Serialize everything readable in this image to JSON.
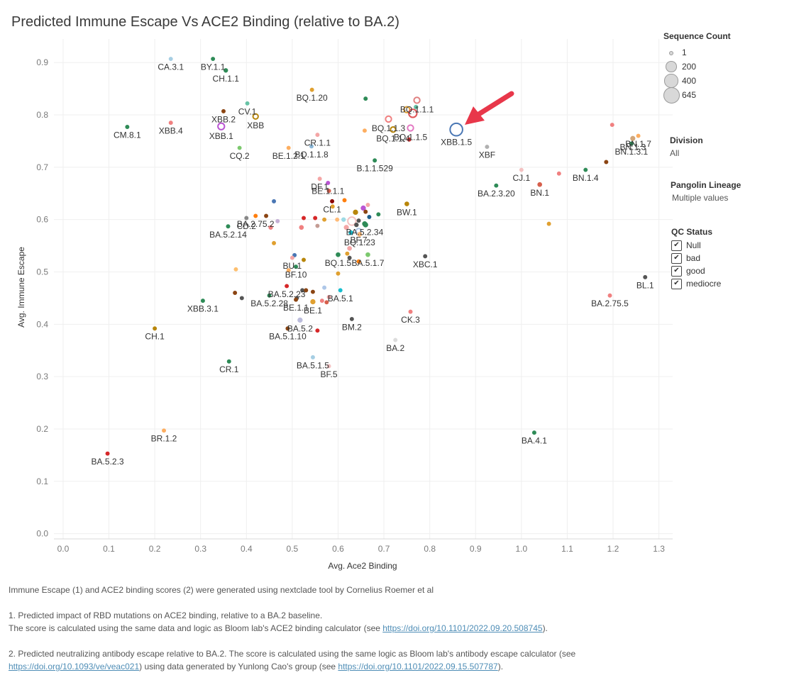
{
  "chart_data": {
    "type": "scatter",
    "title": "Predicted Immune Escape Vs ACE2 Binding (relative to BA.2)",
    "xlabel": "Avg. Ace2 Binding",
    "ylabel": "Avg. Immune Escape",
    "xlim": [
      -0.02,
      1.33
    ],
    "ylim": [
      -0.01,
      0.945
    ],
    "xticks": [
      "0.0",
      "0.1",
      "0.2",
      "0.3",
      "0.4",
      "0.5",
      "0.6",
      "0.7",
      "0.8",
      "0.9",
      "1.0",
      "1.1",
      "1.2",
      "1.3"
    ],
    "yticks": [
      "0.0",
      "0.1",
      "0.2",
      "0.3",
      "0.4",
      "0.5",
      "0.6",
      "0.7",
      "0.8",
      "0.9"
    ],
    "labeled_points": [
      {
        "label": "CA.3.1",
        "x": 0.235,
        "y": 0.907,
        "color": "#a6cee3",
        "size": 1
      },
      {
        "label": "BY.1.1",
        "x": 0.327,
        "y": 0.907,
        "color": "#2e8b57",
        "size": 1
      },
      {
        "label": "CH.1.1",
        "x": 0.355,
        "y": 0.885,
        "color": "#2e8b57",
        "size": 2
      },
      {
        "label": "BQ.1.20",
        "x": 0.543,
        "y": 0.848,
        "color": "#e0a030",
        "size": 1
      },
      {
        "label": "XBB.2",
        "x": 0.35,
        "y": 0.807,
        "color": "#8b4513",
        "size": 1
      },
      {
        "label": "CV.1",
        "x": 0.402,
        "y": 0.822,
        "color": "#66c2a5",
        "size": 1
      },
      {
        "label": "XBB",
        "x": 0.42,
        "y": 0.797,
        "color": "#b8860b",
        "size": 12
      },
      {
        "label": "XBB.4",
        "x": 0.235,
        "y": 0.785,
        "color": "#f08080",
        "size": 1
      },
      {
        "label": "XBB.1",
        "x": 0.345,
        "y": 0.778,
        "color": "#ba55d3",
        "size": 30
      },
      {
        "label": "CM.8.1",
        "x": 0.14,
        "y": 0.777,
        "color": "#2e8b57",
        "size": 1
      },
      {
        "label": "CQ.2",
        "x": 0.385,
        "y": 0.737,
        "color": "#7cc96e",
        "size": 1
      },
      {
        "label": "CR.1.1",
        "x": 0.555,
        "y": 0.762,
        "color": "#f4a6a6",
        "size": 1
      },
      {
        "label": "BE.1.2.1",
        "x": 0.492,
        "y": 0.737,
        "color": "#fdae61",
        "size": 1
      },
      {
        "label": "BQ.1.1.8",
        "x": 0.542,
        "y": 0.74,
        "color": "#8cb8d8",
        "size": 1
      },
      {
        "label": "BQ.1.1.3",
        "x": 0.71,
        "y": 0.792,
        "color": "#f08080",
        "size": 20
      },
      {
        "label": "BQ.1.1.1",
        "x": 0.772,
        "y": 0.828,
        "color": "#e08080",
        "size": 20
      },
      {
        "label": "BQ.1.1.5",
        "x": 0.758,
        "y": 0.775,
        "color": "#e377c2",
        "size": 20
      },
      {
        "label": "BQ.1.1.4",
        "x": 0.72,
        "y": 0.772,
        "color": "#b8860b",
        "size": 12
      },
      {
        "label": "B.1.1.529",
        "x": 0.68,
        "y": 0.713,
        "color": "#2e8b57",
        "size": 1
      },
      {
        "label": "XBB.1.5",
        "x": 0.858,
        "y": 0.772,
        "color": "#4a77b4",
        "size": 200
      },
      {
        "label": "XBF",
        "x": 0.925,
        "y": 0.739,
        "color": "#b0b0b0",
        "size": 1
      },
      {
        "label": "BN.1.3",
        "x": 1.243,
        "y": 0.755,
        "color": "#d2a679",
        "size": 5
      },
      {
        "label": "BN.1.7",
        "x": 1.255,
        "y": 0.76,
        "color": "#fdae61",
        "size": 1
      },
      {
        "label": "BN.1.3.1",
        "x": 1.24,
        "y": 0.745,
        "color": "#2e8b57",
        "size": 1
      },
      {
        "label": "DF.1",
        "x": 0.56,
        "y": 0.678,
        "color": "#f4a6a6",
        "size": 1
      },
      {
        "label": "BE.1.1.1",
        "x": 0.578,
        "y": 0.67,
        "color": "#ba55d3",
        "size": 1
      },
      {
        "label": "CJ.1",
        "x": 1.0,
        "y": 0.695,
        "color": "#f4c2c2",
        "size": 1
      },
      {
        "label": "BN.1.4",
        "x": 1.14,
        "y": 0.695,
        "color": "#2e8b57",
        "size": 1
      },
      {
        "label": "BA.2.3.20",
        "x": 0.945,
        "y": 0.665,
        "color": "#2e8b57",
        "size": 1
      },
      {
        "label": "BN.1",
        "x": 1.04,
        "y": 0.667,
        "color": "#d6604d",
        "size": 3
      },
      {
        "label": "CL.1",
        "x": 0.587,
        "y": 0.635,
        "color": "#8b0000",
        "size": 1
      },
      {
        "label": "BW.1",
        "x": 0.75,
        "y": 0.63,
        "color": "#b8860b",
        "size": 3
      },
      {
        "label": "CD.2",
        "x": 0.4,
        "y": 0.603,
        "color": "#888888",
        "size": 1
      },
      {
        "label": "BA.2.75.2",
        "x": 0.42,
        "y": 0.607,
        "color": "#ff7f0e",
        "size": 1
      },
      {
        "label": "BA.5.2.34",
        "x": 0.658,
        "y": 0.592,
        "color": "#2e8b57",
        "size": 5
      },
      {
        "label": "BA.5.2.14",
        "x": 0.36,
        "y": 0.587,
        "color": "#2e8b57",
        "size": 1
      },
      {
        "label": "BF.7",
        "x": 0.645,
        "y": 0.578,
        "color": "#aec7e8",
        "size": 12
      },
      {
        "label": "BQ.1.23",
        "x": 0.647,
        "y": 0.572,
        "color": "#ffbb78",
        "size": 3
      },
      {
        "label": "BU.1",
        "x": 0.5,
        "y": 0.527,
        "color": "#f4a6a6",
        "size": 1
      },
      {
        "label": "XBC.1",
        "x": 0.79,
        "y": 0.53,
        "color": "#555555",
        "size": 1
      },
      {
        "label": "BQ.1.5",
        "x": 0.6,
        "y": 0.533,
        "color": "#2e8b57",
        "size": 3
      },
      {
        "label": "BA.5.1.7",
        "x": 0.665,
        "y": 0.533,
        "color": "#7cc96e",
        "size": 3
      },
      {
        "label": "BF.10",
        "x": 0.508,
        "y": 0.51,
        "color": "#2e8b57",
        "size": 1
      },
      {
        "label": "BL.1",
        "x": 1.27,
        "y": 0.49,
        "color": "#555555",
        "size": 1
      },
      {
        "label": "BA.5.2.23",
        "x": 0.488,
        "y": 0.473,
        "color": "#d62728",
        "size": 1
      },
      {
        "label": "BA.5.1",
        "x": 0.605,
        "y": 0.465,
        "color": "#17becf",
        "size": 1
      },
      {
        "label": "BA.5.2.28",
        "x": 0.45,
        "y": 0.455,
        "color": "#2e8b57",
        "size": 1
      },
      {
        "label": "BE.1",
        "x": 0.545,
        "y": 0.443,
        "color": "#e0a030",
        "size": 6
      },
      {
        "label": "BE.1.1",
        "x": 0.508,
        "y": 0.447,
        "color": "#8b4513",
        "size": 1
      },
      {
        "label": "XBB.3.1",
        "x": 0.305,
        "y": 0.445,
        "color": "#2e8b57",
        "size": 1
      },
      {
        "label": "BA.2.75.5",
        "x": 1.193,
        "y": 0.455,
        "color": "#f08080",
        "size": 1
      },
      {
        "label": "CK.3",
        "x": 0.758,
        "y": 0.424,
        "color": "#f08080",
        "size": 1
      },
      {
        "label": "BA.5.2",
        "x": 0.517,
        "y": 0.408,
        "color": "#bcbddc",
        "size": 6
      },
      {
        "label": "BM.2",
        "x": 0.63,
        "y": 0.41,
        "color": "#555555",
        "size": 1
      },
      {
        "label": "CH.1",
        "x": 0.2,
        "y": 0.392,
        "color": "#b8860b",
        "size": 1
      },
      {
        "label": "BA.5.1.10",
        "x": 0.49,
        "y": 0.392,
        "color": "#8b4513",
        "size": 1
      },
      {
        "label": "BA.2",
        "x": 0.725,
        "y": 0.37,
        "color": "#dddddd",
        "size": 1
      },
      {
        "label": "BA.5.1.5",
        "x": 0.545,
        "y": 0.337,
        "color": "#a6cee3",
        "size": 1
      },
      {
        "label": "BF.5",
        "x": 0.58,
        "y": 0.32,
        "color": "#f4c2c2",
        "size": 1
      },
      {
        "label": "CR.1",
        "x": 0.362,
        "y": 0.329,
        "color": "#2e8b57",
        "size": 1
      },
      {
        "label": "BR.1.2",
        "x": 0.22,
        "y": 0.197,
        "color": "#fdae61",
        "size": 1
      },
      {
        "label": "BA.4.1",
        "x": 1.028,
        "y": 0.193,
        "color": "#2e8b57",
        "size": 1
      },
      {
        "label": "BA.5.2.3",
        "x": 0.097,
        "y": 0.153,
        "color": "#d62728",
        "size": 1
      }
    ],
    "other_points": [
      {
        "x": 0.66,
        "y": 0.831,
        "color": "#2e8b57",
        "size": 1
      },
      {
        "x": 0.658,
        "y": 0.77,
        "color": "#fdae61",
        "size": 1
      },
      {
        "x": 0.755,
        "y": 0.753,
        "color": "#d62728",
        "size": 1
      },
      {
        "x": 0.75,
        "y": 0.81,
        "color": "#e0a030",
        "size": 20
      },
      {
        "x": 0.763,
        "y": 0.803,
        "color": "#e15759",
        "size": 60
      },
      {
        "x": 0.77,
        "y": 0.815,
        "color": "#66c2a5",
        "size": 2
      },
      {
        "x": 1.198,
        "y": 0.781,
        "color": "#f08080",
        "size": 1
      },
      {
        "x": 1.185,
        "y": 0.71,
        "color": "#8b4513",
        "size": 1
      },
      {
        "x": 1.082,
        "y": 0.688,
        "color": "#f08080",
        "size": 1
      },
      {
        "x": 0.58,
        "y": 0.655,
        "color": "#d6604d",
        "size": 1
      },
      {
        "x": 0.588,
        "y": 0.625,
        "color": "#e0a030",
        "size": 1
      },
      {
        "x": 0.614,
        "y": 0.637,
        "color": "#ff7f0e",
        "size": 1
      },
      {
        "x": 0.443,
        "y": 0.607,
        "color": "#8b4513",
        "size": 1
      },
      {
        "x": 0.453,
        "y": 0.585,
        "color": "#f08080",
        "size": 2
      },
      {
        "x": 0.46,
        "y": 0.635,
        "color": "#4a77b4",
        "size": 1
      },
      {
        "x": 0.525,
        "y": 0.603,
        "color": "#d62728",
        "size": 1
      },
      {
        "x": 0.55,
        "y": 0.603,
        "color": "#d62728",
        "size": 1
      },
      {
        "x": 0.555,
        "y": 0.588,
        "color": "#c49c94",
        "size": 1
      },
      {
        "x": 0.52,
        "y": 0.585,
        "color": "#f08080",
        "size": 3
      },
      {
        "x": 0.57,
        "y": 0.6,
        "color": "#e0a030",
        "size": 1
      },
      {
        "x": 0.598,
        "y": 0.6,
        "color": "#ffbb78",
        "size": 1
      },
      {
        "x": 0.638,
        "y": 0.614,
        "color": "#b8860b",
        "size": 6
      },
      {
        "x": 0.645,
        "y": 0.598,
        "color": "#555555",
        "size": 1
      },
      {
        "x": 0.655,
        "y": 0.622,
        "color": "#ba55d3",
        "size": 6
      },
      {
        "x": 0.66,
        "y": 0.615,
        "color": "#8b4513",
        "size": 1
      },
      {
        "x": 0.668,
        "y": 0.605,
        "color": "#1f5f8b",
        "size": 1
      },
      {
        "x": 0.63,
        "y": 0.597,
        "color": "#f4c2c2",
        "size": 60
      },
      {
        "x": 0.618,
        "y": 0.585,
        "color": "#f4a6a6",
        "size": 5
      },
      {
        "x": 0.64,
        "y": 0.59,
        "color": "#555555",
        "size": 2
      },
      {
        "x": 0.612,
        "y": 0.6,
        "color": "#9edae5",
        "size": 2
      },
      {
        "x": 0.66,
        "y": 0.59,
        "color": "#2e8b57",
        "size": 6
      },
      {
        "x": 0.688,
        "y": 0.61,
        "color": "#2e8b57",
        "size": 1
      },
      {
        "x": 0.665,
        "y": 0.628,
        "color": "#f4a6a6",
        "size": 1
      },
      {
        "x": 0.625,
        "y": 0.545,
        "color": "#f4a6a6",
        "size": 3
      },
      {
        "x": 0.62,
        "y": 0.535,
        "color": "#e0a030",
        "size": 1
      },
      {
        "x": 0.625,
        "y": 0.527,
        "color": "#555555",
        "size": 1
      },
      {
        "x": 0.6,
        "y": 0.497,
        "color": "#e0a030",
        "size": 1
      },
      {
        "x": 0.645,
        "y": 0.52,
        "color": "#ff7f0e",
        "size": 1
      },
      {
        "x": 0.525,
        "y": 0.523,
        "color": "#b8860b",
        "size": 1
      },
      {
        "x": 0.505,
        "y": 0.532,
        "color": "#4a77b4",
        "size": 1
      },
      {
        "x": 0.492,
        "y": 0.503,
        "color": "#fdae61",
        "size": 1
      },
      {
        "x": 0.468,
        "y": 0.597,
        "color": "#c5b0d5",
        "size": 1
      },
      {
        "x": 0.46,
        "y": 0.555,
        "color": "#e0a030",
        "size": 1
      },
      {
        "x": 0.522,
        "y": 0.465,
        "color": "#555555",
        "size": 1
      },
      {
        "x": 0.53,
        "y": 0.465,
        "color": "#8b4513",
        "size": 1
      },
      {
        "x": 0.51,
        "y": 0.45,
        "color": "#555555",
        "size": 1
      },
      {
        "x": 0.545,
        "y": 0.462,
        "color": "#8b4513",
        "size": 1
      },
      {
        "x": 0.565,
        "y": 0.445,
        "color": "#f08080",
        "size": 1
      },
      {
        "x": 0.575,
        "y": 0.442,
        "color": "#d6604d",
        "size": 1
      },
      {
        "x": 0.57,
        "y": 0.47,
        "color": "#aec7e8",
        "size": 1
      },
      {
        "x": 0.58,
        "y": 0.452,
        "color": "#f4a6a6",
        "size": 1
      },
      {
        "x": 0.39,
        "y": 0.45,
        "color": "#555555",
        "size": 1
      },
      {
        "x": 0.375,
        "y": 0.46,
        "color": "#8b4513",
        "size": 1
      },
      {
        "x": 0.377,
        "y": 0.505,
        "color": "#fdbf6f",
        "size": 1
      },
      {
        "x": 0.555,
        "y": 0.388,
        "color": "#d62728",
        "size": 1
      },
      {
        "x": 1.06,
        "y": 0.592,
        "color": "#e0a030",
        "size": 1
      },
      {
        "x": 0.628,
        "y": 0.575,
        "color": "#17becf",
        "size": 3
      }
    ],
    "annotation": {
      "type": "arrow",
      "points_to": "XBB.1.5",
      "color": "#e8374a"
    }
  },
  "legend": {
    "size_title": "Sequence Count",
    "sizes": [
      {
        "label": "1",
        "value": 1
      },
      {
        "label": "200",
        "value": 200
      },
      {
        "label": "400",
        "value": 400
      },
      {
        "label": "645",
        "value": 645
      }
    ],
    "division_title": "Division",
    "division_value": "All",
    "lineage_title": "Pangolin Lineage",
    "lineage_value": "Multiple values",
    "qc_title": "QC Status",
    "qc_items": [
      {
        "label": "Null",
        "checked": "✔"
      },
      {
        "label": "bad",
        "checked": "✔"
      },
      {
        "label": "good",
        "checked": "✔"
      },
      {
        "label": "mediocre",
        "checked": "✔"
      }
    ]
  },
  "footer": {
    "credit": "Immune Escape (1) and ACE2 binding scores (2) were generated using nextclade tool by Cornelius Roemer et al",
    "note1_line1": "1. Predicted impact of RBD mutations on ACE2 binding, relative to a BA.2 baseline.",
    "note1_line2_pre": "The score is calculated using the same data and logic as Bloom lab's ACE2 binding calculator (see ",
    "note1_link": "https://doi.org/10.1101/2022.09.20.508745",
    "note1_line2_post": ").",
    "note2_line1": "2. Predicted neutralizing antibody escape relative to BA.2. The score is calculated using the same logic as Bloom lab's antibody escape calculator (see",
    "note2_link1": "https://doi.org/10.1093/ve/veac021",
    "note2_mid": ") using data generated by Yunlong Cao's group (see ",
    "note2_link2": "https://doi.org/10.1101/2022.09.15.507787",
    "note2_post": ")."
  }
}
